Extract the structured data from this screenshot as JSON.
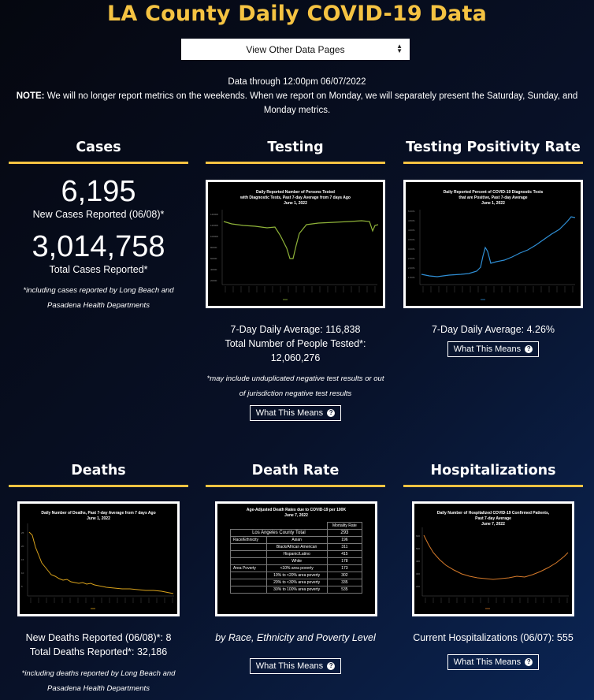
{
  "title": "LA County Daily COVID-19 Data",
  "nav_select": "View Other Data Pages",
  "data_through": "Data through 12:00pm 06/07/2022",
  "note_label": "NOTE:",
  "note_text": " We will no longer report metrics on the weekends. When we report on Monday, we will separately present the Saturday, Sunday, and Monday metrics.",
  "cases": {
    "header": "Cases",
    "new_cases": "6,195",
    "new_cases_label": "New Cases Reported (06/08)*",
    "total_cases": "3,014,758",
    "total_cases_label": "Total Cases Reported*",
    "footnote": "*including cases reported by Long Beach and Pasadena Health Departments"
  },
  "testing": {
    "header": "Testing",
    "chart_title_1": "Daily Reported Number of Persons Tested",
    "chart_title_2": "with Diagnostic Tests, Past 7-day Average from 7 days Ago",
    "chart_title_3": "June 1, 2022",
    "avg": "7-Day Daily Average: 116,838",
    "total_label": "Total Number of People Tested*:",
    "total": "12,060,276",
    "footnote": "*may include unduplicated negative test results or out of jurisdiction negative test results",
    "button": "What This Means"
  },
  "positivity": {
    "header": "Testing Positivity Rate",
    "chart_title_1": "Daily Reported Percent of COVID-19 Diagnostic Tests",
    "chart_title_2": "that are Positive, Past 7-day Average",
    "chart_title_3": "June 1, 2022",
    "avg": "7-Day Daily Average: 4.26%",
    "button": "What This Means"
  },
  "deaths": {
    "header": "Deaths",
    "chart_title_1": "Daily Number of Deaths, Past 7-day Average from 7 days Ago",
    "chart_title_2": "June 1, 2022",
    "new_deaths": "New Deaths Reported (06/08)*: 8",
    "total_deaths": "Total Deaths Reported*: 32,186",
    "footnote": "*including deaths reported by Long Beach and Pasadena Health Departments"
  },
  "death_rate": {
    "header": "Death Rate",
    "chart_title_1": "Age-Adjusted Death Rates due to COVID-19 per 100K",
    "chart_title_2": "June 7, 2022",
    "table_header": "Mortality Rate",
    "total_label": "Los Angeles County Total",
    "total_value": "293",
    "group_race": "Race/Ethnicity",
    "group_poverty": "Area Poverty",
    "rows": [
      {
        "group": "Race/Ethnicity",
        "label": "Asian",
        "value": "196"
      },
      {
        "group": "",
        "label": "Black/African American",
        "value": "311"
      },
      {
        "group": "",
        "label": "Hispanic/Latino",
        "value": "415"
      },
      {
        "group": "",
        "label": "White",
        "value": "178"
      },
      {
        "group": "Area Poverty",
        "label": "<10% area poverty",
        "value": "173"
      },
      {
        "group": "",
        "label": "10% to <20% area poverty",
        "value": "302"
      },
      {
        "group": "",
        "label": "20% to <30% area poverty",
        "value": "335"
      },
      {
        "group": "",
        "label": "30% to 100% area poverty",
        "value": "535"
      }
    ],
    "caption": "by Race, Ethnicity and Poverty Level",
    "button": "What This Means"
  },
  "hospitalizations": {
    "header": "Hospitalizations",
    "chart_title_1": "Daily Number of Hospitalized COVID-19 Confirmed Patients,",
    "chart_title_2": "Past 7-day Average",
    "chart_title_3": "June 7, 2022",
    "current": "Current Hospitalizations (06/07): 555",
    "button": "What This Means"
  },
  "icons": {
    "help": "question-circle-icon",
    "select": "sort-arrows-icon"
  },
  "colors": {
    "accent": "#f5c342",
    "testing_line": "#8fb339",
    "positivity_line": "#2f8fd6",
    "deaths_line": "#d9a21b",
    "hosp_line": "#d67a2a"
  }
}
